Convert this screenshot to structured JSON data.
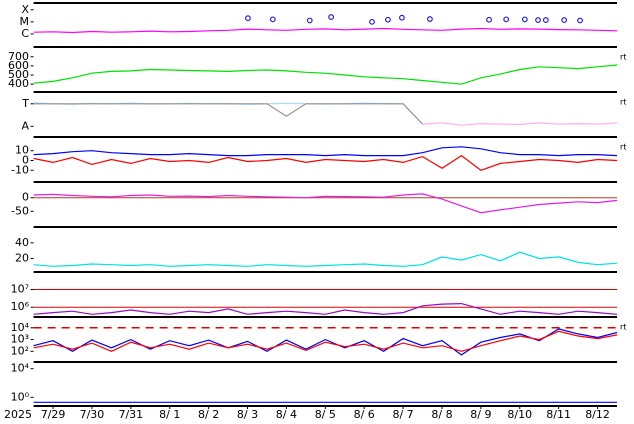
{
  "time": {
    "year": "2025",
    "xlim": [
      0,
      15
    ],
    "xticks": [
      {
        "value": 0.5,
        "label": "7/29"
      },
      {
        "value": 1.5,
        "label": "7/30"
      },
      {
        "value": 2.5,
        "label": "7/31"
      },
      {
        "value": 3.5,
        "label": "8/ 1"
      },
      {
        "value": 4.5,
        "label": "8/ 2"
      },
      {
        "value": 5.5,
        "label": "8/ 3"
      },
      {
        "value": 6.5,
        "label": "8/ 4"
      },
      {
        "value": 7.5,
        "label": "8/ 5"
      },
      {
        "value": 8.5,
        "label": "8/ 6"
      },
      {
        "value": 9.5,
        "label": "8/ 7"
      },
      {
        "value": 10.5,
        "label": "8/ 8"
      },
      {
        "value": 11.5,
        "label": "8/ 9"
      },
      {
        "value": 12.5,
        "label": "8/10"
      },
      {
        "value": 13.5,
        "label": "8/11"
      },
      {
        "value": 14.5,
        "label": "8/12"
      }
    ],
    "x": [
      0,
      0.5,
      1,
      1.5,
      2,
      2.5,
      3,
      3.5,
      4,
      4.5,
      5,
      5.5,
      6,
      6.5,
      7,
      7.5,
      8,
      8.5,
      9,
      9.5,
      10,
      10.5,
      11,
      11.5,
      12,
      12.5,
      13,
      13.5,
      14,
      14.5,
      15
    ]
  },
  "chart_data": [
    {
      "type": "line",
      "log": true,
      "ylim": [
        1e-07,
        0.0003
      ],
      "yticks": [
        {
          "value": 0.0001,
          "label": "X"
        },
        {
          "value": 1e-05,
          "label": "M"
        },
        {
          "value": 1e-06,
          "label": "C"
        }
      ],
      "series": [
        {
          "color": "#ff00ff",
          "values": [
            1.4e-06,
            1.5e-06,
            1.3e-06,
            1.6e-06,
            1.4e-06,
            1.5e-06,
            1.7e-06,
            1.5e-06,
            1.6e-06,
            1.8e-06,
            2e-06,
            2.5e-06,
            2.2e-06,
            2e-06,
            2.4e-06,
            2.6e-06,
            2.2e-06,
            2.5e-06,
            2.8e-06,
            2.4e-06,
            2.2e-06,
            2e-06,
            2.5e-06,
            2.8e-06,
            2.4e-06,
            2.6e-06,
            2.5e-06,
            2.3e-06,
            2.2e-06,
            2e-06,
            1.8e-06
          ]
        }
      ],
      "points": {
        "color": "#2020e0",
        "x": [
          5.51,
          6.15,
          7.1,
          7.65,
          8.7,
          9.11,
          9.47,
          10.19,
          11.71,
          12.15,
          12.63,
          12.97,
          13.17,
          13.64,
          14.05
        ],
        "values": [
          2e-05,
          1.6e-05,
          1.3e-05,
          2.5e-05,
          1e-05,
          1.5e-05,
          2.2e-05,
          1.7e-05,
          1.5e-05,
          1.6e-05,
          1.6e-05,
          1.4e-05,
          1.4e-05,
          1.4e-05,
          1.3e-05
        ]
      }
    },
    {
      "type": "line",
      "log": false,
      "ylim": [
        325,
        796
      ],
      "yticks": [
        700,
        600,
        500,
        400
      ],
      "side_label": "rt",
      "series": [
        {
          "color": "#00e000",
          "values": [
            410,
            430,
            470,
            520,
            540,
            545,
            560,
            555,
            550,
            545,
            540,
            550,
            555,
            545,
            530,
            520,
            500,
            480,
            470,
            460,
            440,
            420,
            400,
            470,
            510,
            560,
            590,
            580,
            570,
            590,
            610
          ]
        }
      ]
    },
    {
      "type": "line",
      "log": false,
      "ylim": [
        -0.43,
        1.48
      ],
      "yticks": [
        {
          "value": 1,
          "label": "T"
        },
        {
          "value": 0,
          "label": "A"
        }
      ],
      "side_label": "rt",
      "series": [
        {
          "color": "#a8d8ff",
          "values": [
            1.05,
            1,
            0.98,
            1.02,
            1,
            1.03,
            0.99,
            1,
            1.02,
            1,
            1.01,
            0.98,
            1,
            1.02,
            1,
            0.99,
            1,
            1.03,
            1.01,
            1,
            null,
            null,
            null,
            null,
            null,
            null,
            null,
            null,
            null,
            null,
            null
          ]
        },
        {
          "color": "#909090",
          "values": [
            1,
            1,
            1,
            1,
            1,
            1,
            1,
            1,
            1,
            1,
            1,
            1,
            1,
            0.45,
            1,
            1,
            1,
            1,
            1,
            1,
            0.1,
            null,
            null,
            null,
            null,
            null,
            null,
            null,
            null,
            null,
            null
          ]
        },
        {
          "color": "#ffb0ee",
          "values": [
            null,
            null,
            null,
            null,
            null,
            null,
            null,
            null,
            null,
            null,
            null,
            null,
            null,
            null,
            null,
            null,
            null,
            null,
            null,
            null,
            0.1,
            0.15,
            0.05,
            0.12,
            0.1,
            0.08,
            0.15,
            0.1,
            0.12,
            0.1,
            0.15
          ]
        }
      ]
    },
    {
      "type": "line",
      "log": false,
      "ylim": [
        -21,
        23
      ],
      "yticks": [
        10,
        0,
        -10
      ],
      "side_label": "rt",
      "series": [
        {
          "color": "#0000ff",
          "values": [
            6,
            7,
            9,
            10,
            8,
            7,
            6,
            6,
            7,
            6,
            5,
            5,
            6,
            6,
            6,
            5,
            6,
            5,
            5,
            5,
            8,
            13,
            14,
            12,
            8,
            6,
            6,
            5,
            6,
            6,
            5
          ]
        },
        {
          "color": "#ff0000",
          "values": [
            2,
            -2,
            3,
            -4,
            1,
            -3,
            2,
            -1,
            0,
            -2,
            3,
            -1,
            0,
            2,
            -2,
            1,
            0,
            -1,
            1,
            -2,
            4,
            -8,
            5,
            -10,
            -3,
            -1,
            1,
            0,
            -2,
            1,
            0
          ]
        }
      ]
    },
    {
      "type": "line",
      "log": false,
      "ylim": [
        -104,
        54
      ],
      "yticks": [
        0,
        -50
      ],
      "reference_lines": [
        0
      ],
      "reference_color": "#b04020",
      "series": [
        {
          "color": "#e020e0",
          "values": [
            10,
            12,
            8,
            5,
            3,
            8,
            10,
            5,
            6,
            4,
            8,
            5,
            3,
            2,
            0,
            5,
            4,
            3,
            2,
            10,
            14,
            -5,
            -30,
            -55,
            -45,
            -35,
            -25,
            -20,
            -15,
            -18,
            -10
          ]
        }
      ]
    },
    {
      "type": "line",
      "log": false,
      "ylim": [
        4,
        59
      ],
      "yticks": [
        40,
        20
      ],
      "series": [
        {
          "color": "#00e0e0",
          "values": [
            12,
            10,
            11,
            13,
            12,
            11,
            12,
            10,
            11,
            12,
            11,
            10,
            12,
            11,
            10,
            11,
            12,
            13,
            11,
            10,
            12,
            22,
            18,
            25,
            17,
            28,
            20,
            22,
            15,
            12,
            14
          ]
        }
      ]
    },
    {
      "type": "line",
      "log": true,
      "ylim": [
        320000,
        85000000
      ],
      "yticks": [
        {
          "value": 10000000,
          "label": "10⁷"
        },
        {
          "value": 1000000,
          "label": "10⁶"
        }
      ],
      "reference_lines": [
        10000000,
        1000000
      ],
      "reference_color": "#e00000",
      "series": [
        {
          "color": "#9010c0",
          "values": [
            400000,
            500000,
            600000,
            400000,
            500000,
            700000,
            500000,
            400000,
            600000,
            500000,
            800000,
            400000,
            500000,
            600000,
            500000,
            400000,
            700000,
            500000,
            400000,
            500000,
            1200000,
            1500000,
            1600000,
            800000,
            400000,
            600000,
            500000,
            400000,
            600000,
            500000,
            400000
          ]
        }
      ]
    },
    {
      "type": "line",
      "log": true,
      "ylim": [
        15,
        68000
      ],
      "yticks": [
        {
          "value": 10000,
          "label": "10⁴"
        },
        {
          "value": 1000,
          "label": "10³"
        },
        {
          "value": 100,
          "label": "10²"
        }
      ],
      "side_label": "rt",
      "dashed_lines": [
        10000
      ],
      "reference_color": "#e00000",
      "series": [
        {
          "color": "#0000ff",
          "values": [
            300,
            800,
            100,
            900,
            200,
            1000,
            150,
            800,
            300,
            900,
            200,
            700,
            100,
            900,
            150,
            1000,
            200,
            800,
            100,
            1200,
            300,
            800,
            50,
            600,
            1500,
            3000,
            800,
            8000,
            3000,
            1500,
            4000
          ]
        },
        {
          "color": "#ff0000",
          "values": [
            200,
            400,
            150,
            500,
            100,
            600,
            200,
            400,
            150,
            500,
            200,
            400,
            150,
            500,
            120,
            600,
            250,
            400,
            150,
            500,
            200,
            300,
            100,
            300,
            800,
            2000,
            1000,
            5000,
            2000,
            1200,
            2500
          ]
        }
      ]
    },
    {
      "type": "line",
      "log": true,
      "ylim": [
        0.085,
        63000
      ],
      "yticks": [
        {
          "value": 10000,
          "label": "10⁴"
        },
        {
          "value": 1,
          "label": "10⁰"
        }
      ],
      "series": [
        {
          "color": "#0000ff",
          "values": [
            0.2,
            0.2,
            0.2,
            0.2,
            0.2,
            0.2,
            0.2,
            0.2,
            0.2,
            0.2,
            0.2,
            0.2,
            0.2,
            0.2,
            0.2,
            0.2,
            0.2,
            0.2,
            0.2,
            0.2,
            0.2,
            0.2,
            0.2,
            0.2,
            0.2,
            0.2,
            0.2,
            0.2,
            0.2,
            0.2,
            0.2
          ]
        }
      ]
    }
  ]
}
